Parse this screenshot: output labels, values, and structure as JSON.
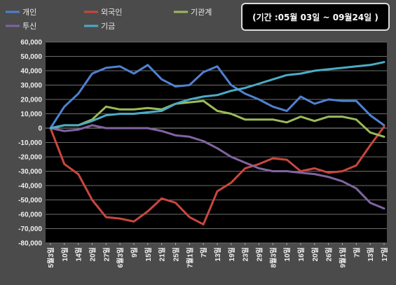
{
  "chart_data": {
    "type": "line",
    "title": "",
    "period_label": "(기간 :05월 03일 ~ 09월24일 )",
    "ylim": [
      -80000,
      60000
    ],
    "yticks": [
      "60,000",
      "50,000",
      "40,000",
      "30,000",
      "20,000",
      "10,000",
      "0",
      "-10,000",
      "-20,000",
      "-30,000",
      "-40,000",
      "-50,000",
      "-60,000",
      "-70,000",
      "-80,000"
    ],
    "ytick_values": [
      60000,
      50000,
      40000,
      30000,
      20000,
      10000,
      0,
      -10000,
      -20000,
      -30000,
      -40000,
      -50000,
      -60000,
      -70000,
      -80000
    ],
    "x_labels": [
      "5월3일",
      "10일",
      "14일",
      "20일",
      "27일",
      "6월3일",
      "9일",
      "15일",
      "21일",
      "25일",
      "7월1일",
      "7일",
      "13일",
      "19일",
      "23일",
      "29일",
      "8월3일",
      "10일",
      "16일",
      "20일",
      "26일",
      "9월1일",
      "7일",
      "13일",
      "17일"
    ],
    "legend_position": "top-left",
    "grid": true,
    "series": [
      {
        "name": "개인",
        "color": "#4f81d0",
        "values": [
          0,
          15000,
          24000,
          38000,
          42000,
          43000,
          38000,
          44000,
          34000,
          29000,
          30000,
          39000,
          43000,
          30000,
          24000,
          20000,
          15000,
          12000,
          22000,
          17000,
          20000,
          19000,
          19000,
          9000,
          2000
        ]
      },
      {
        "name": "외국인",
        "color": "#c8473e",
        "values": [
          0,
          -25000,
          -32000,
          -50000,
          -62000,
          -63000,
          -65000,
          -58000,
          -49000,
          -52000,
          -62000,
          -67000,
          -44000,
          -38000,
          -28000,
          -25000,
          -21000,
          -22000,
          -30000,
          -28000,
          -31000,
          -30000,
          -26000,
          -12000,
          1000
        ]
      },
      {
        "name": "기관계",
        "color": "#9bbb59",
        "values": [
          0,
          2000,
          2000,
          6000,
          15000,
          13000,
          13000,
          14000,
          13000,
          17000,
          18000,
          19000,
          12000,
          10000,
          6000,
          6000,
          6000,
          4000,
          8000,
          5000,
          8000,
          8000,
          6000,
          -3000,
          -6000
        ]
      },
      {
        "name": "투신",
        "color": "#8064a2",
        "values": [
          0,
          -2000,
          -1000,
          2000,
          0,
          0,
          0,
          0,
          -2000,
          -5000,
          -6000,
          -9000,
          -14000,
          -20000,
          -24000,
          -28000,
          -30000,
          -30000,
          -31000,
          -32000,
          -34000,
          -37000,
          -42000,
          -52000,
          -56000
        ]
      },
      {
        "name": "기금",
        "color": "#4bacc6",
        "values": [
          0,
          2000,
          2000,
          5000,
          9000,
          10000,
          10000,
          11000,
          12000,
          17000,
          20000,
          22000,
          23000,
          26000,
          28000,
          31000,
          34000,
          37000,
          38000,
          40000,
          41000,
          42000,
          43000,
          44000,
          46000
        ]
      }
    ]
  }
}
